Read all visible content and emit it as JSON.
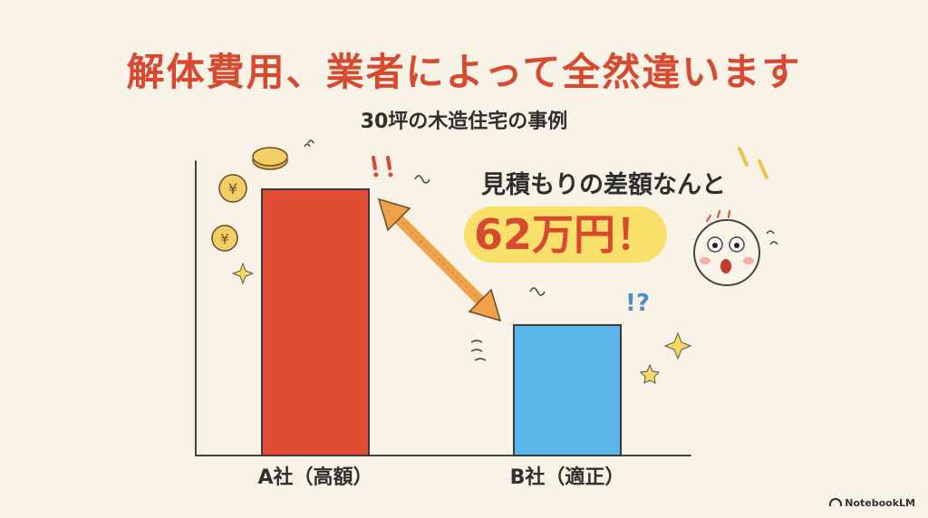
{
  "title": "解体費用、業者によって全然違います",
  "subtitle": "30坪の木造住宅の事例",
  "callout": {
    "text": "見積もりの差額なんと",
    "amount": "62万円！"
  },
  "badge": "NotebookLM",
  "colors": {
    "title": "#d9492f",
    "bar_a": "#e04b31",
    "bar_b": "#5cb6e9",
    "arrow": "#f0a24b",
    "highlight": "#f8e06a",
    "coin": "#e9c04d"
  },
  "chart_data": {
    "type": "bar",
    "categories": [
      "A社（高額）",
      "B社（適正）"
    ],
    "values": [
      100,
      49
    ],
    "colors": [
      "#e04b31",
      "#5cb6e9"
    ],
    "title": "解体費用、業者によって全然違います",
    "subtitle": "30坪の木造住宅の事例",
    "xlabel": "",
    "ylabel": "",
    "ylim": [
      0,
      100
    ],
    "grid": false,
    "annotations": [
      "見積もりの差額なんと",
      "62万円！"
    ]
  }
}
